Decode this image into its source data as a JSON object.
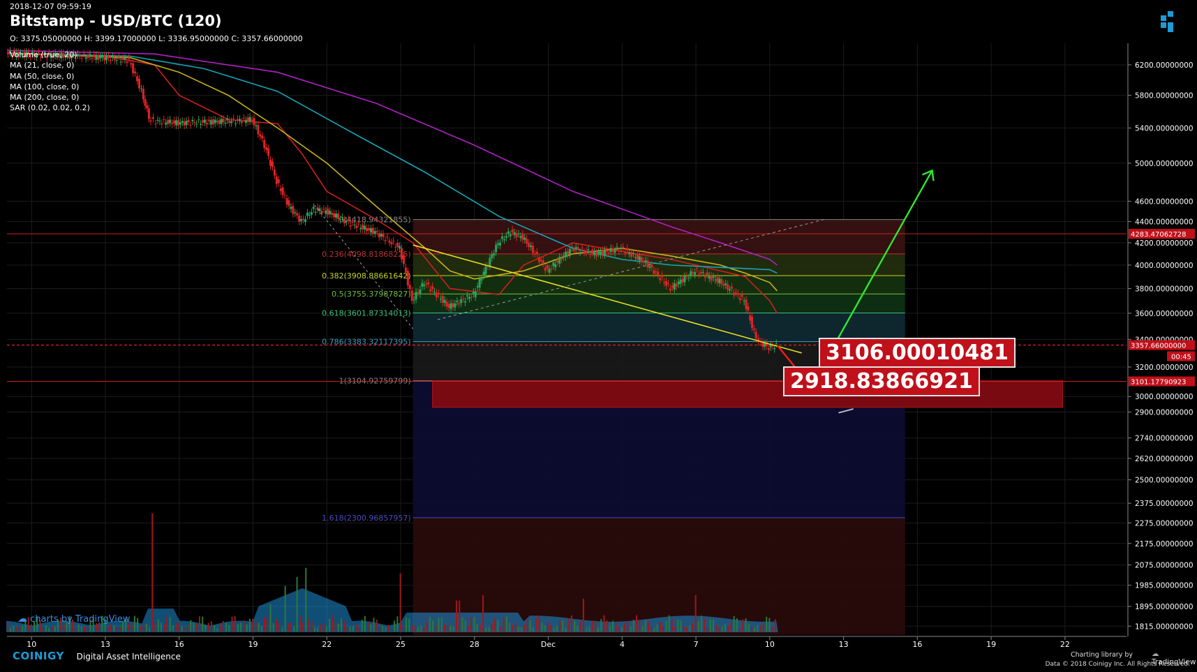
{
  "header": {
    "timestamp": "2018-12-07 09:59:19",
    "title": "Bitstamp - USD/BTC (120)",
    "ohlc": "O: 3375.05000000 H: 3399.17000000 L: 3336.95000000 C: 3357.66000000"
  },
  "indicators": [
    "Volume (true, 20)",
    "MA (21, close, 0)",
    "MA (50, close, 0)",
    "MA (100, close, 0)",
    "MA (200, close, 0)",
    "SAR (0.02, 0.02, 0.2)"
  ],
  "colors": {
    "background": "#000000",
    "grid": "#1c1c1c",
    "up_candle": "#26a65b",
    "down_candle": "#e02424",
    "ma21": "#d11f1f",
    "ma50": "#c9b21c",
    "ma100": "#17a6b8",
    "ma200": "#b021c4",
    "trendline": "#e6dc23",
    "arrow_up": "#2ee82e",
    "arrow_down": "#ff1a1a",
    "label_red": "#c0101a",
    "volume_area": "#1e8fd6",
    "accent": "#1e9bd7"
  },
  "price_labels": {
    "current": "3357.66000000",
    "countdown": "00:45",
    "upper_line": "4283.47062728",
    "lower_line": "3101.17790923"
  },
  "annotations": {
    "target_high": "3106.00010481",
    "target_low": "2918.83866921"
  },
  "fib_levels": [
    {
      "ratio": "0",
      "label": "0(4418.94321855)",
      "value": 4418.94321855
    },
    {
      "ratio": "0.236",
      "label": "0.236(4098.81868226)",
      "value": 4098.81868226
    },
    {
      "ratio": "0.382",
      "label": "0.382(3908.88661642)",
      "value": 3908.88661642
    },
    {
      "ratio": "0.5",
      "label": "0.5(3755.37987827)",
      "value": 3755.37987827
    },
    {
      "ratio": "0.618",
      "label": "0.618(3601.87314013)",
      "value": 3601.87314013
    },
    {
      "ratio": "0.786",
      "label": "0.786(3383.32117395)",
      "value": 3383.32117395
    },
    {
      "ratio": "1",
      "label": "1(3104.92759799)",
      "value": 3104.92759799
    },
    {
      "ratio": "1.618",
      "label": "1.618(2300.96857957)",
      "value": 2300.96857957
    }
  ],
  "watermark": "charts by TradingView",
  "footer": {
    "brand": "COINIGY",
    "tagline": "Digital Asset Intelligence",
    "charting": "Charting library by",
    "tv": "TradingView",
    "copyright": "Data © 2018  Coinigy Inc. All Rights Reserved."
  },
  "chart_data": {
    "type": "line",
    "title": "Bitstamp - USD/BTC (120)",
    "y_axis_scale": "log",
    "ylim": [
      1780,
      6500
    ],
    "y_ticks": [
      1815,
      1895,
      1985,
      2075,
      2175,
      2275,
      2375,
      2500,
      2620,
      2740,
      2900,
      3000,
      3200,
      3400,
      3600,
      3800,
      4000,
      4200,
      4400,
      4600,
      5000,
      5400,
      5800,
      6200
    ],
    "y_tick_labels": [
      "1815.00000000",
      "1895.00000000",
      "1985.00000000",
      "2075.00000000",
      "2175.00000000",
      "2275.00000000",
      "2375.00000000",
      "2500.00000000",
      "2620.00000000",
      "2740.00000000",
      "2900.00000000",
      "3000.00000000",
      "3200.00000000",
      "3400.00000000",
      "3600.00000000",
      "3800.00000000",
      "4000.00000000",
      "4200.00000000",
      "4400.00000000",
      "4600.00000000",
      "5000.00000000",
      "5400.00000000",
      "5800.00000000",
      "6200.00000000"
    ],
    "x_tick_labels": [
      "10",
      "13",
      "16",
      "19",
      "22",
      "25",
      "28",
      "Dec",
      "4",
      "7",
      "10",
      "13",
      "16",
      "19",
      "22"
    ],
    "x_tick_days": [
      0,
      3,
      6,
      9,
      12,
      15,
      18,
      21,
      24,
      27,
      30,
      33,
      36,
      39,
      42
    ],
    "x_range_days": [
      -1,
      44.5
    ],
    "grid": true,
    "legend": "top-left",
    "price_series": {
      "name": "USD/BTC",
      "days": [
        -1,
        0,
        1,
        2,
        3,
        4,
        4.5,
        4.8,
        5,
        6,
        7,
        8,
        9,
        9.5,
        10,
        10.5,
        11,
        11.5,
        12,
        13,
        14,
        15,
        15.5,
        16,
        17,
        18,
        19,
        19.5,
        20,
        20.5,
        21,
        22,
        23,
        24,
        25,
        26,
        27,
        28,
        28.5,
        29,
        29.4,
        29.6,
        30,
        30.3
      ],
      "close": [
        6360,
        6340,
        6330,
        6320,
        6300,
        6260,
        5850,
        5520,
        5480,
        5460,
        5470,
        5480,
        5500,
        5200,
        4800,
        4550,
        4400,
        4520,
        4500,
        4380,
        4300,
        4150,
        3700,
        3850,
        3650,
        3750,
        4200,
        4300,
        4250,
        4100,
        3950,
        4150,
        4100,
        4150,
        4020,
        3800,
        3950,
        3860,
        3780,
        3700,
        3450,
        3380,
        3340,
        3357
      ]
    },
    "ma_series": [
      {
        "name": "MA (21, close, 0)",
        "days": [
          -1,
          3,
          5,
          6,
          8,
          10,
          11,
          12,
          14,
          15.5,
          17,
          19,
          20,
          22,
          24,
          26,
          28,
          29,
          30,
          30.3
        ],
        "values": [
          6360,
          6320,
          6200,
          5800,
          5500,
          5450,
          5100,
          4700,
          4420,
          4200,
          3800,
          3750,
          4000,
          4200,
          4120,
          4050,
          3950,
          3900,
          3700,
          3600
        ]
      },
      {
        "name": "MA (50, close, 0)",
        "days": [
          -1,
          4,
          6,
          8,
          10,
          12,
          14,
          16,
          17,
          18,
          20,
          22,
          24,
          26,
          28,
          29,
          30,
          30.3
        ],
        "values": [
          6360,
          6300,
          6100,
          5800,
          5400,
          5000,
          4550,
          4150,
          3950,
          3880,
          3950,
          4100,
          4150,
          4080,
          4000,
          3930,
          3850,
          3780
        ]
      },
      {
        "name": "MA (100, close, 0)",
        "days": [
          -1,
          4,
          7,
          10,
          13,
          16,
          19,
          22,
          24,
          26,
          28,
          30,
          30.3
        ],
        "values": [
          6360,
          6320,
          6150,
          5850,
          5350,
          4900,
          4450,
          4150,
          4050,
          4000,
          3980,
          3960,
          3930
        ]
      },
      {
        "name": "MA (200, close, 0)",
        "days": [
          -1,
          5,
          10,
          14,
          18,
          22,
          26,
          28,
          30,
          30.3
        ],
        "values": [
          6400,
          6350,
          6100,
          5700,
          5200,
          4700,
          4350,
          4200,
          4050,
          4000
        ]
      }
    ],
    "trendlines": [
      {
        "name": "descending",
        "days": [
          15.5,
          31.3
        ],
        "values": [
          4180,
          3300
        ]
      },
      {
        "name": "rising-dashed",
        "days": [
          16.5,
          32.2
        ],
        "values": [
          3550,
          4420
        ]
      }
    ],
    "forecast_path": {
      "days": [
        30.3,
        31.6,
        32.6,
        36.6
      ],
      "values": [
        3357,
        3080,
        3395,
        4920
      ]
    },
    "volume": {
      "peak_days": [
        4.9,
        8.9,
        9.7,
        10.3,
        10.8,
        11.1,
        15.0,
        17.3,
        18.3,
        22.4,
        27.0
      ],
      "peak_heights": [
        0.6,
        0.02,
        0.1,
        0.2,
        0.25,
        0.3,
        0.27,
        0.12,
        0.15,
        0.13,
        0.15
      ]
    }
  }
}
